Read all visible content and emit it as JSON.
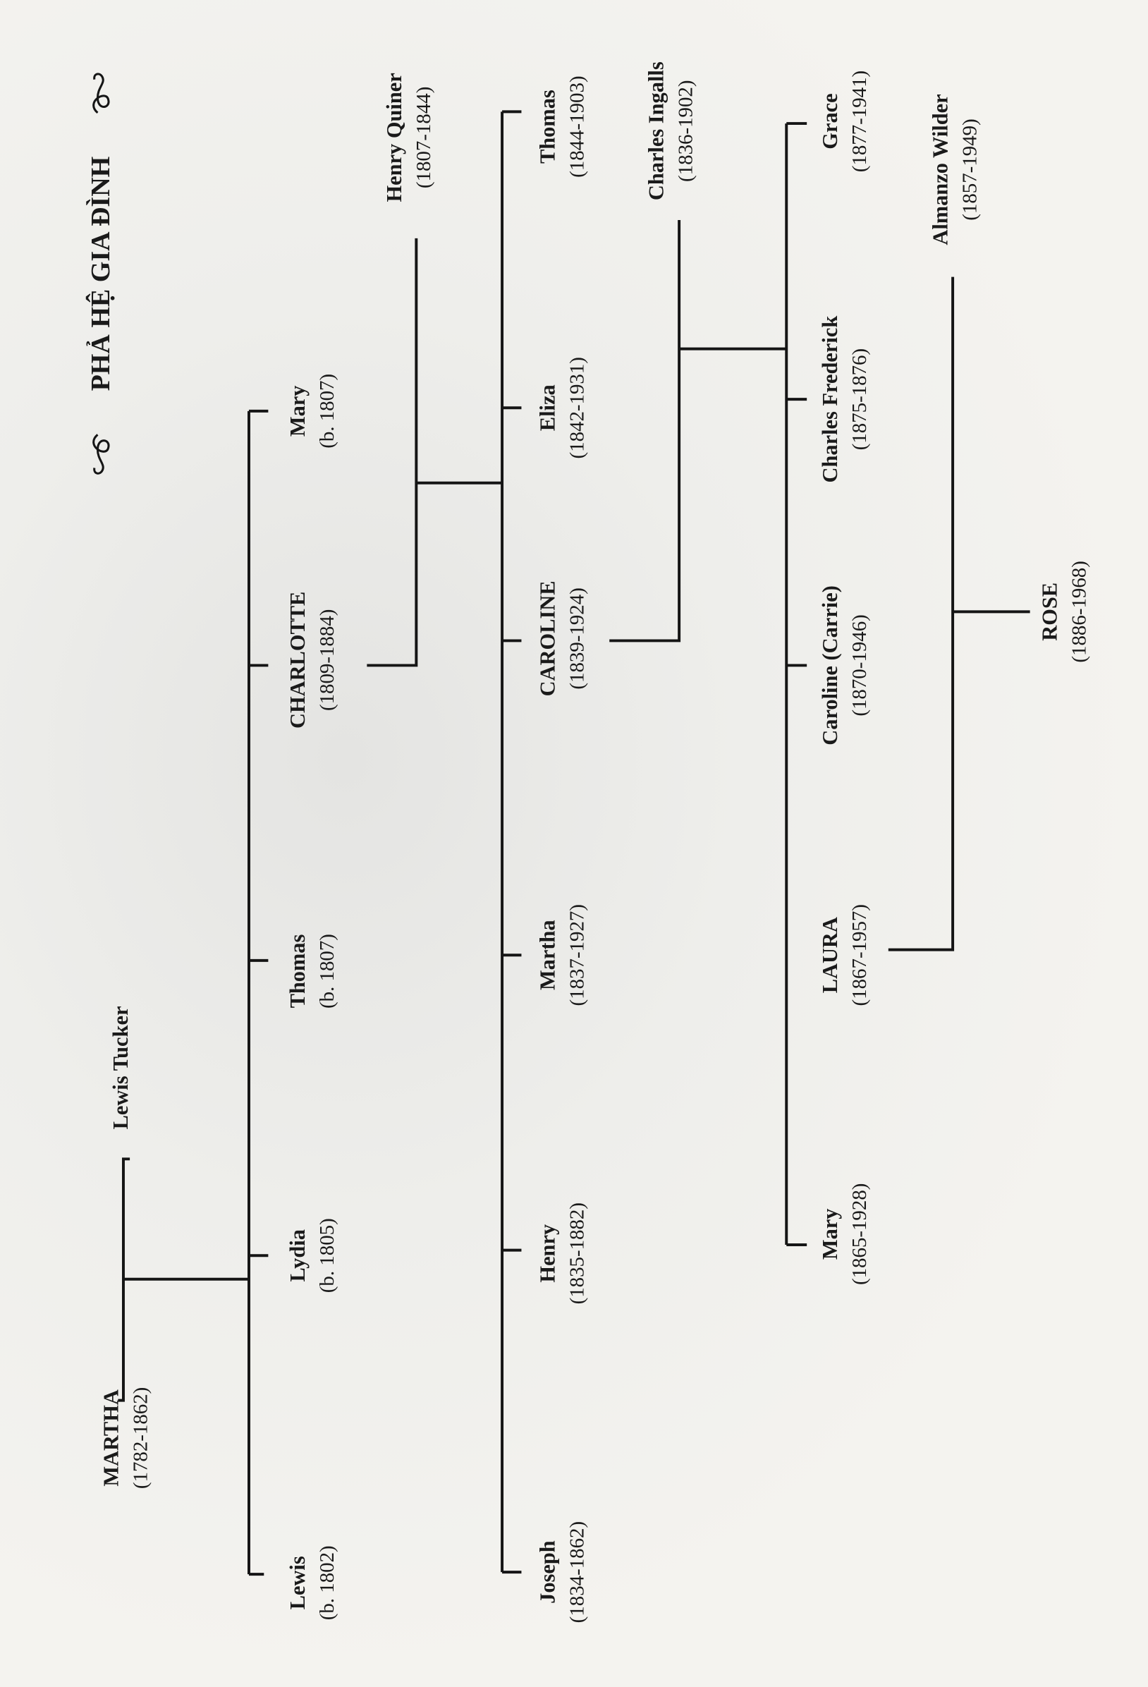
{
  "title": "PHẢ HỆ GIA ĐÌNH",
  "people": [
    {
      "id": "martha-1782",
      "name": "MARTHA",
      "dates": "(1782-1862)"
    },
    {
      "id": "lewis-tucker",
      "name": "Lewis Tucker",
      "dates": ""
    },
    {
      "id": "lewis",
      "name": "Lewis",
      "dates": "(b. 1802)"
    },
    {
      "id": "lydia",
      "name": "Lydia",
      "dates": "(b. 1805)"
    },
    {
      "id": "thomas-1807",
      "name": "Thomas",
      "dates": "(b. 1807)"
    },
    {
      "id": "charlotte",
      "name": "CHARLOTTE",
      "dates": "(1809-1884)"
    },
    {
      "id": "mary-1807",
      "name": "Mary",
      "dates": "(b. 1807)"
    },
    {
      "id": "henry-quiner",
      "name": "Henry Quiner",
      "dates": "(1807-1844)"
    },
    {
      "id": "joseph",
      "name": "Joseph",
      "dates": "(1834-1862)"
    },
    {
      "id": "henry",
      "name": "Henry",
      "dates": "(1835-1882)"
    },
    {
      "id": "martha-1837",
      "name": "Martha",
      "dates": "(1837-1927)"
    },
    {
      "id": "caroline",
      "name": "CAROLINE",
      "dates": "(1839-1924)"
    },
    {
      "id": "eliza",
      "name": "Eliza",
      "dates": "(1842-1931)"
    },
    {
      "id": "thomas-1844",
      "name": "Thomas",
      "dates": "(1844-1903)"
    },
    {
      "id": "charles-ingalls",
      "name": "Charles Ingalls",
      "dates": "(1836-1902)"
    },
    {
      "id": "mary-1865",
      "name": "Mary",
      "dates": "(1865-1928)"
    },
    {
      "id": "laura",
      "name": "LAURA",
      "dates": "(1867-1957)"
    },
    {
      "id": "carrie",
      "name": "Caroline (Carrie)",
      "dates": "(1870-1946)"
    },
    {
      "id": "charles-frederick",
      "name": "Charles Frederick",
      "dates": "(1875-1876)"
    },
    {
      "id": "grace",
      "name": "Grace",
      "dates": "(1877-1941)"
    },
    {
      "id": "almanzo-wilder",
      "name": "Almanzo Wilder",
      "dates": "(1857-1949)"
    },
    {
      "id": "rose",
      "name": "ROSE",
      "dates": "(1886-1968)"
    }
  ]
}
